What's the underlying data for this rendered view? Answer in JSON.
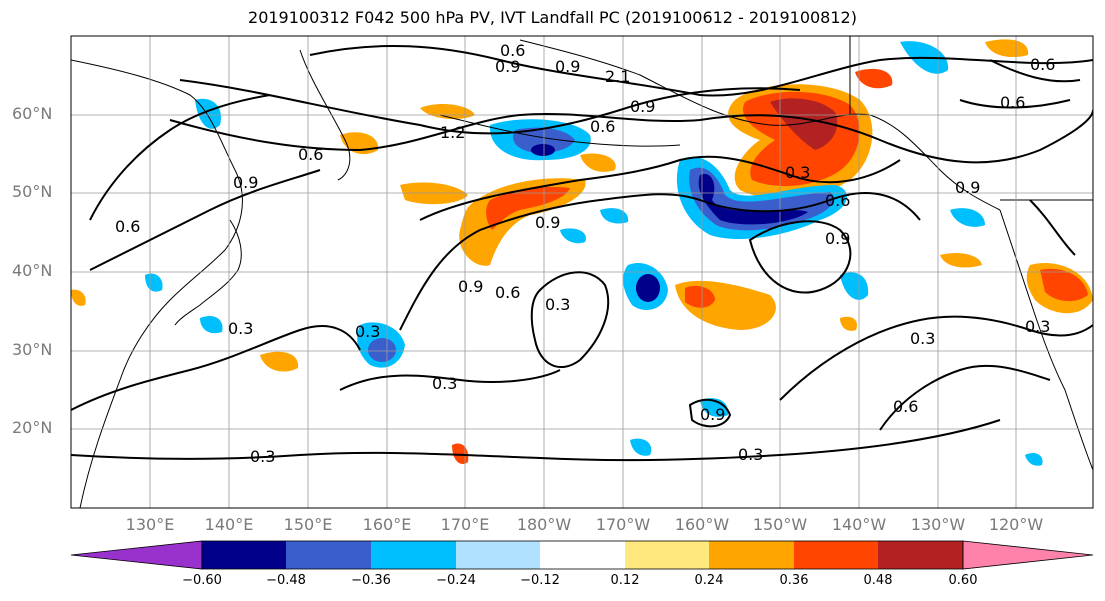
{
  "title": "2019100312 F042 500 hPa PV, IVT Landfall PC (2019100612 - 2019100812)",
  "map": {
    "lat_labels": [
      "60°N",
      "50°N",
      "40°N",
      "30°N",
      "20°N"
    ],
    "lon_labels": [
      "130°E",
      "140°E",
      "150°E",
      "160°E",
      "170°E",
      "180°W",
      "170°W",
      "160°W",
      "150°W",
      "140°W",
      "130°W",
      "120°W"
    ],
    "contour_labels": [
      "0.6",
      "0.9",
      "2.1",
      "0.9",
      "1.2",
      "0.6",
      "0.9",
      "0.6",
      "0.9",
      "0.3",
      "0.6",
      "0.9",
      "0.6",
      "0.9",
      "0.6",
      "0.9",
      "0.6",
      "0.3",
      "0.3",
      "0.3",
      "0.3",
      "0.3",
      "0.3",
      "0.6",
      "0.3",
      "0.3",
      "0.9",
      "0.6",
      "0.9"
    ],
    "colors": {
      "land_outline": "#000000",
      "grid": "#9a9a9a",
      "contour": "#000000"
    }
  },
  "colorbar": {
    "ticks": [
      "−0.60",
      "−0.48",
      "−0.36",
      "−0.24",
      "−0.12",
      "0.12",
      "0.24",
      "0.36",
      "0.48",
      "0.60"
    ],
    "colors": [
      "#9932cc",
      "#00008b",
      "#3a5fcd",
      "#00bfff",
      "#b0e2ff",
      "#ffffff",
      "#ffe97f",
      "#ffa500",
      "#ff4500",
      "#b22222",
      "#ff82ab"
    ]
  }
}
